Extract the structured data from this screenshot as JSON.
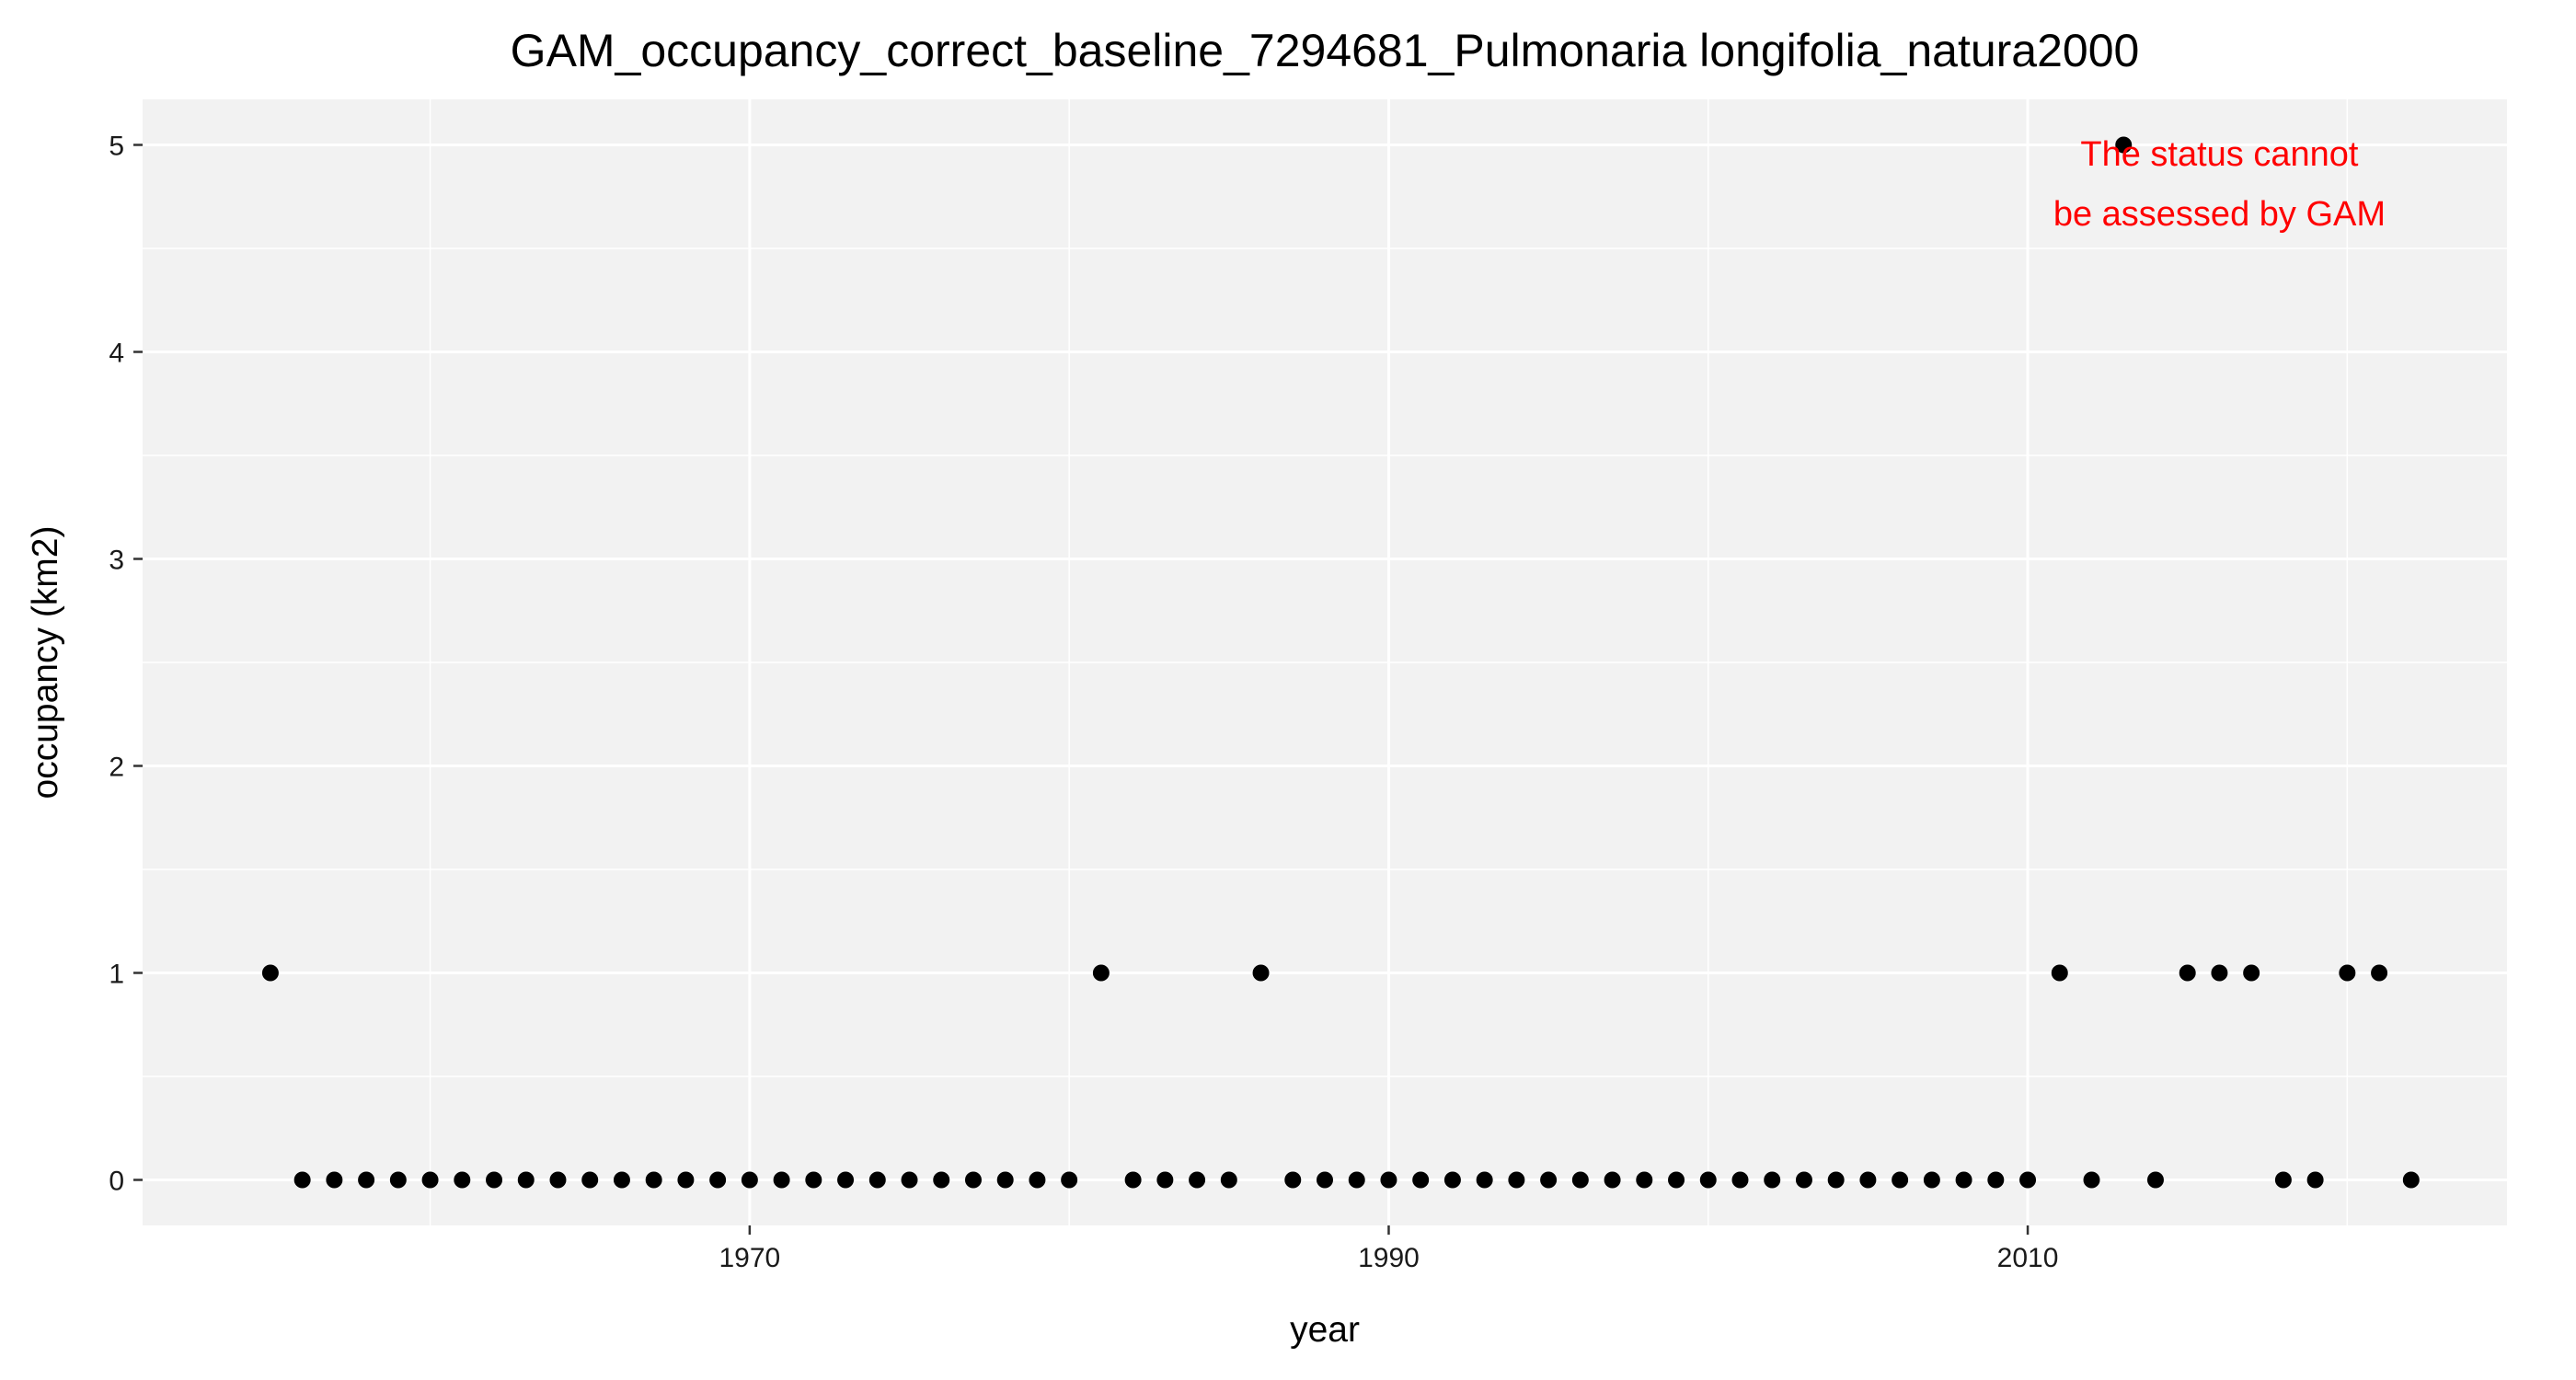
{
  "chart_data": {
    "type": "scatter",
    "title": "GAM_occupancy_correct_baseline_7294681_Pulmonaria longifolia_natura2000",
    "xlabel": "year",
    "ylabel": "occupancy (km2)",
    "xlim": [
      1951,
      2025
    ],
    "ylim": [
      -0.22,
      5.22
    ],
    "x_ticks": [
      1970,
      1990,
      2010
    ],
    "y_ticks": [
      0,
      1,
      2,
      3,
      4,
      5
    ],
    "grid": true,
    "point_color": "#000000",
    "panel_background": "#f2f2f2",
    "annotation": {
      "lines": [
        "The status cannot",
        "be assessed by GAM"
      ],
      "color": "#ff0000"
    },
    "series": [
      {
        "x": [
          1955,
          1956,
          1957,
          1958,
          1959,
          1960,
          1961,
          1962,
          1963,
          1964,
          1965,
          1966,
          1967,
          1968,
          1969,
          1970,
          1971,
          1972,
          1973,
          1974,
          1975,
          1976,
          1977,
          1978,
          1979,
          1980,
          1981,
          1982,
          1983,
          1984,
          1985,
          1986,
          1987,
          1988,
          1989,
          1990,
          1991,
          1992,
          1993,
          1994,
          1995,
          1996,
          1997,
          1998,
          1999,
          2000,
          2001,
          2002,
          2003,
          2004,
          2005,
          2006,
          2007,
          2008,
          2009,
          2010,
          2011,
          2012,
          2013,
          2014,
          2015,
          2016,
          2017,
          2018,
          2019,
          2020,
          2021,
          2022
        ],
        "y": [
          1,
          0,
          0,
          0,
          0,
          0,
          0,
          0,
          0,
          0,
          0,
          0,
          0,
          0,
          0,
          0,
          0,
          0,
          0,
          0,
          0,
          0,
          0,
          0,
          0,
          0,
          1,
          0,
          0,
          0,
          0,
          1,
          0,
          0,
          0,
          0,
          0,
          0,
          0,
          0,
          0,
          0,
          0,
          0,
          0,
          0,
          0,
          0,
          0,
          0,
          0,
          0,
          0,
          0,
          0,
          0,
          1,
          0,
          5,
          0,
          1,
          1,
          1,
          0,
          0,
          1,
          1,
          0
        ]
      }
    ]
  }
}
